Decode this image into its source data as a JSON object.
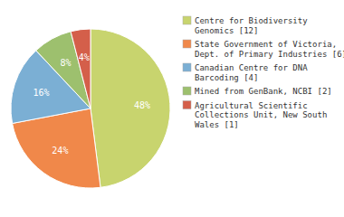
{
  "chart_data": {
    "type": "pie",
    "categories": [
      "Centre for Biodiversity\nGenomics [12]",
      "State Government of Victoria,\nDept. of Primary Industries [6]",
      "Canadian Centre for DNA\nBarcoding [4]",
      "Mined from GenBank, NCBI [2]",
      "Agricultural Scientific\nCollections Unit, New South\nWales [1]"
    ],
    "values": [
      48,
      24,
      16,
      8,
      4
    ],
    "value_labels": [
      "48%",
      "24%",
      "16%",
      "8%",
      "4%"
    ],
    "colors": [
      "#c8d46e",
      "#f0884a",
      "#7bafd4",
      "#9dc06e",
      "#d45f4a"
    ],
    "data_labels": true,
    "legend": "right"
  }
}
